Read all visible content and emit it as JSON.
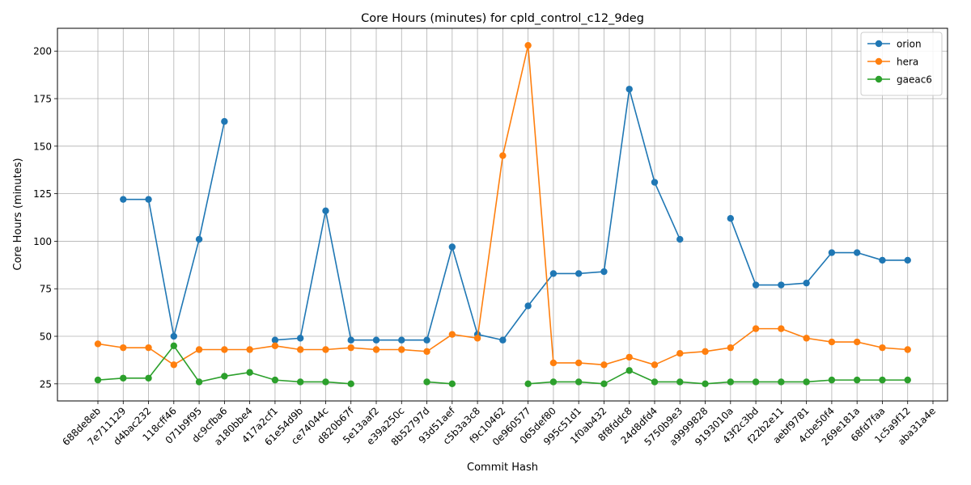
{
  "chart_data": {
    "type": "line",
    "title": "Core Hours (minutes) for cpld_control_c12_9deg",
    "xlabel": "Commit Hash",
    "ylabel": "Core Hours (minutes)",
    "ylim": [
      16,
      212
    ],
    "yticks": [
      25,
      50,
      75,
      100,
      125,
      150,
      175,
      200
    ],
    "grid": true,
    "legend_position": "top-right",
    "categories": [
      "688de8eb",
      "7e711129",
      "d4bac232",
      "118cff46",
      "071b9f95",
      "dc9cfba6",
      "a180bbe4",
      "417a2cf1",
      "61e54d9b",
      "ce74044c",
      "d820b67f",
      "5e13aaf2",
      "e39a250c",
      "8b52797d",
      "93d51aef",
      "c5b3a3c8",
      "f9c10462",
      "0e960577",
      "065def80",
      "995c51d1",
      "1f0ab432",
      "8f8fddc8",
      "24d8dfd4",
      "5750b9e3",
      "a9999828",
      "9193010a",
      "43f2c3bd",
      "f22b2e11",
      "aebf9781",
      "4cbe50f4",
      "269e181a",
      "68fd7faa",
      "1c5a9f12",
      "aba31a4e"
    ],
    "series": [
      {
        "name": "orion",
        "color": "#1f77b4",
        "values": [
          null,
          122,
          122,
          50,
          101,
          163,
          null,
          48,
          49,
          116,
          48,
          48,
          48,
          48,
          97,
          51,
          48,
          66,
          83,
          83,
          84,
          180,
          131,
          101,
          null,
          112,
          77,
          77,
          78,
          94,
          94,
          90,
          90,
          null
        ]
      },
      {
        "name": "hera",
        "color": "#ff7f0e",
        "values": [
          46,
          44,
          44,
          35,
          43,
          43,
          43,
          45,
          43,
          43,
          44,
          43,
          43,
          42,
          51,
          49,
          145,
          203,
          36,
          36,
          35,
          39,
          35,
          41,
          42,
          44,
          54,
          54,
          49,
          47,
          47,
          44,
          43,
          null
        ]
      },
      {
        "name": "gaeac6",
        "color": "#2ca02c",
        "values": [
          27,
          28,
          28,
          45,
          26,
          29,
          31,
          27,
          26,
          26,
          25,
          null,
          null,
          26,
          25,
          null,
          null,
          25,
          26,
          26,
          25,
          32,
          26,
          26,
          25,
          26,
          26,
          26,
          26,
          27,
          27,
          27,
          27,
          null
        ]
      }
    ]
  }
}
